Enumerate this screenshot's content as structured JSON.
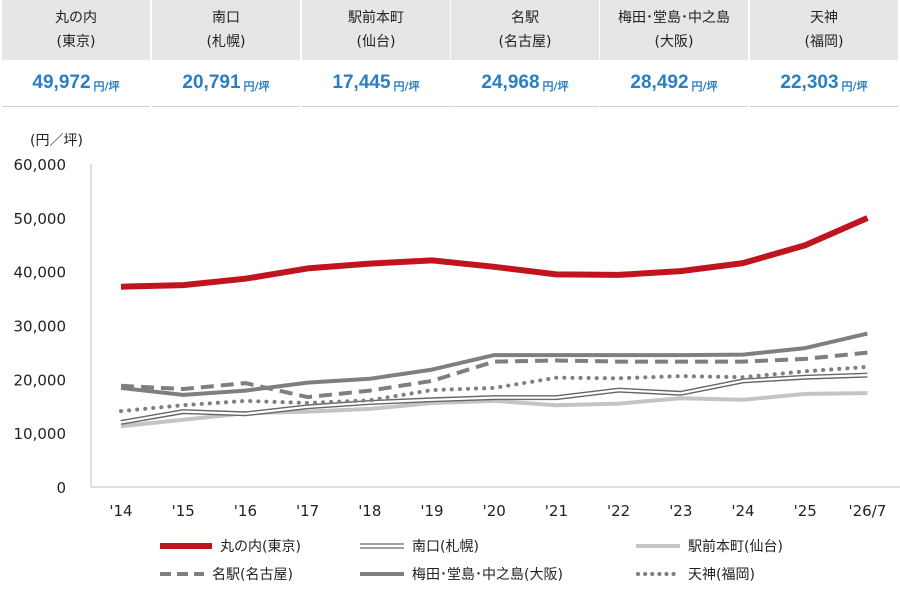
{
  "summary": [
    {
      "name_line1": "丸の内",
      "name_line2": "(東京)",
      "value": "49,972",
      "unit": "円/坪"
    },
    {
      "name_line1": "南口",
      "name_line2": "(札幌)",
      "value": "20,791",
      "unit": "円/坪"
    },
    {
      "name_line1": "駅前本町",
      "name_line2": "(仙台)",
      "value": "17,445",
      "unit": "円/坪"
    },
    {
      "name_line1": "名駅",
      "name_line2": "(名古屋)",
      "value": "24,968",
      "unit": "円/坪"
    },
    {
      "name_line1": "梅田･堂島･中之島",
      "name_line2": "(大阪)",
      "value": "28,492",
      "unit": "円/坪"
    },
    {
      "name_line1": "天神",
      "name_line2": "(福岡)",
      "value": "22,303",
      "unit": "円/坪"
    }
  ],
  "colors": {
    "accent_value": "#2a7fc4",
    "header_bg": "#e6e6e6"
  },
  "chart_data": {
    "type": "line",
    "ylabel": "(円／坪)",
    "ylim": [
      0,
      60000
    ],
    "yticks": [
      "0",
      "10,000",
      "20,000",
      "30,000",
      "40,000",
      "50,000",
      "60,000"
    ],
    "categories": [
      "'14",
      "'15",
      "'16",
      "'17",
      "'18",
      "'19",
      "'20",
      "'21",
      "'22",
      "'23",
      "'24",
      "'25",
      "'26/7"
    ],
    "grid": false,
    "legend_position": "bottom",
    "series": [
      {
        "name": "丸の内(東京)",
        "style": "thick-solid",
        "color": "#c0141f",
        "values": [
          37200,
          37500,
          38700,
          40600,
          41500,
          42100,
          40900,
          39500,
          39400,
          40100,
          41600,
          44900,
          49972
        ]
      },
      {
        "name": "南口(札幌)",
        "style": "double-line",
        "color": "#666666",
        "values": [
          12000,
          14000,
          13600,
          14900,
          15700,
          16200,
          16600,
          16600,
          18000,
          17400,
          19700,
          20400,
          20791
        ]
      },
      {
        "name": "駅前本町(仙台)",
        "style": "light-solid",
        "color": "#c4c4c4",
        "values": [
          11300,
          12500,
          13700,
          14000,
          14500,
          15600,
          16000,
          15200,
          15500,
          16500,
          16200,
          17300,
          17445
        ]
      },
      {
        "name": "名駅(名古屋)",
        "style": "dashed",
        "color": "#7f7f7f",
        "values": [
          18800,
          18200,
          19300,
          16700,
          17900,
          19700,
          23300,
          23500,
          23300,
          23300,
          23300,
          23800,
          24968
        ]
      },
      {
        "name": "梅田･堂島･中之島(大阪)",
        "style": "solid",
        "color": "#7f7f7f",
        "values": [
          18400,
          17100,
          17900,
          19400,
          20100,
          21800,
          24500,
          24500,
          24500,
          24500,
          24600,
          25800,
          28492
        ]
      },
      {
        "name": "天神(福岡)",
        "style": "dotted",
        "color": "#7f7f7f",
        "values": [
          14100,
          15200,
          16000,
          15600,
          16100,
          18000,
          18400,
          20300,
          20200,
          20600,
          20400,
          21500,
          22303
        ]
      }
    ]
  }
}
